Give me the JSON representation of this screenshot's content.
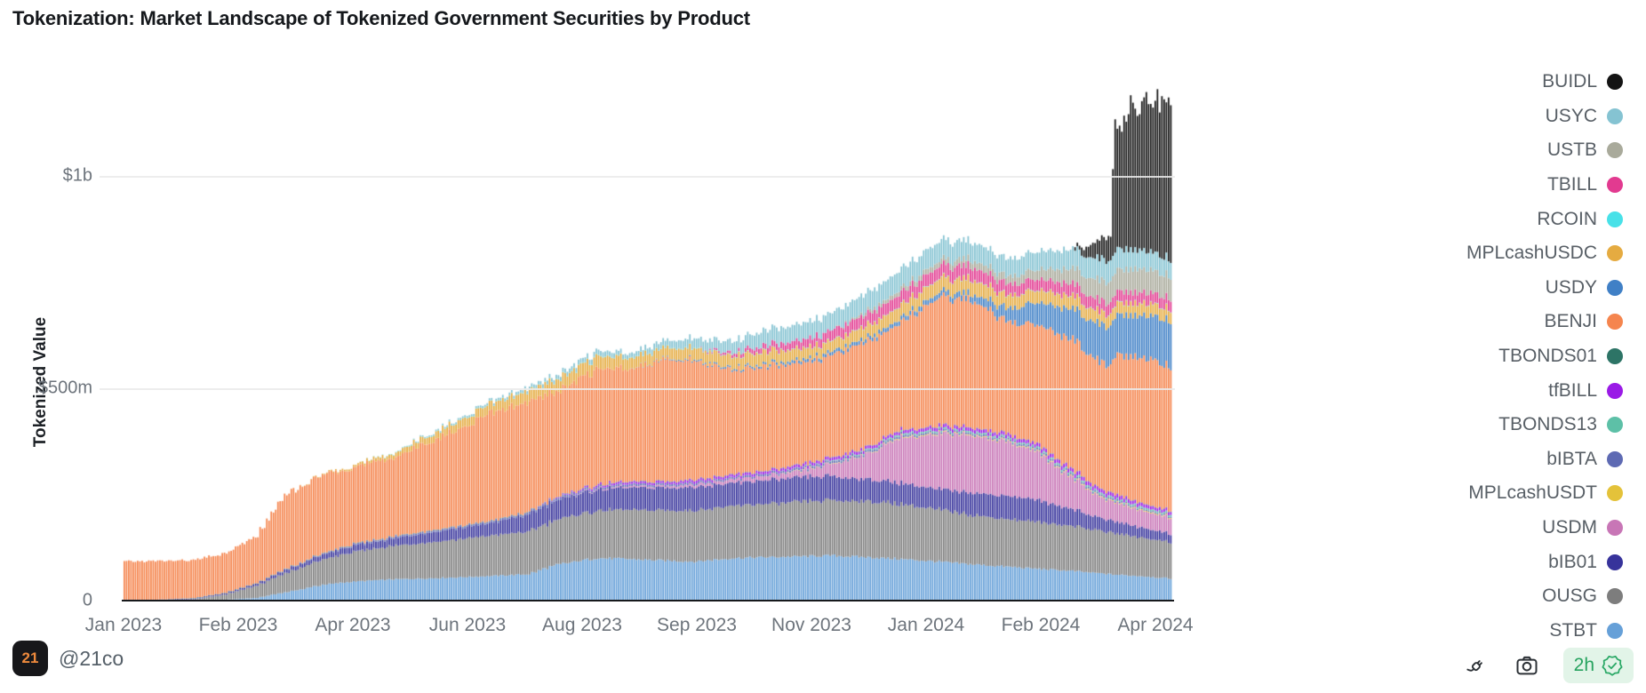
{
  "title": "Tokenization: Market Landscape of Tokenized Government Securities by Product",
  "y_axis": {
    "title": "Tokenized Value",
    "ticks": [
      {
        "label": "$1b",
        "value": 1000
      },
      {
        "label": "$500m",
        "value": 500
      },
      {
        "label": "0",
        "value": 0
      }
    ]
  },
  "x_axis": {
    "ticks": [
      "Jan 2023",
      "Feb 2023",
      "Apr 2023",
      "Jun 2023",
      "Aug 2023",
      "Sep 2023",
      "Nov 2023",
      "Jan 2024",
      "Feb 2024",
      "Apr 2024"
    ]
  },
  "legend": {
    "position": "right",
    "items_top_to_bottom": [
      "BUIDL",
      "USYC",
      "USTB",
      "TBILL",
      "RCOIN",
      "MPLcashUSDC",
      "USDY",
      "BENJI",
      "TBONDS01",
      "tfBILL",
      "TBONDS13",
      "bIBTA",
      "MPLcashUSDT",
      "USDM",
      "bIB01",
      "OUSG",
      "STBT"
    ]
  },
  "footer": {
    "logo_text": "21",
    "handle": "@21co",
    "icons": [
      "plug-icon",
      "camera-icon"
    ],
    "freshness": {
      "label": "2h",
      "icon": "verified-check-icon",
      "color": "#27a35f",
      "bg": "#e2f4e8"
    }
  },
  "chart_data": {
    "type": "bar",
    "stacked": true,
    "title": "Tokenization: Market Landscape of Tokenized Government Securities by Product",
    "xlabel": "",
    "ylabel": "Tokenized Value",
    "value_unit": "USD millions",
    "ylim": [
      0,
      1250
    ],
    "grid": "horizontal",
    "legend_position": "right-outside",
    "note": "Daily stacked bars; series listed bottom-to-top of stack; values are control points (USD millions) at the dates below, bars interpolate between them.",
    "dates": [
      "2023-01-01",
      "2023-01-15",
      "2023-02-01",
      "2023-02-15",
      "2023-03-01",
      "2023-03-15",
      "2023-04-01",
      "2023-04-15",
      "2023-05-01",
      "2023-05-15",
      "2023-06-01",
      "2023-06-15",
      "2023-07-01",
      "2023-07-15",
      "2023-08-01",
      "2023-08-15",
      "2023-09-01",
      "2023-09-15",
      "2023-10-01",
      "2023-10-15",
      "2023-11-01",
      "2023-11-15",
      "2023-12-01",
      "2023-12-15",
      "2024-01-01",
      "2024-01-15",
      "2024-02-01",
      "2024-02-15",
      "2024-03-01",
      "2024-03-15",
      "2024-03-19",
      "2024-03-21",
      "2024-04-01",
      "2024-04-15"
    ],
    "series": [
      {
        "name": "STBT",
        "color": "#66a0d8",
        "values": [
          0,
          0,
          0,
          2,
          6,
          20,
          38,
          45,
          50,
          52,
          55,
          58,
          62,
          85,
          100,
          98,
          94,
          92,
          100,
          102,
          104,
          106,
          102,
          98,
          92,
          86,
          80,
          75,
          70,
          64,
          62,
          61,
          58,
          52
        ]
      },
      {
        "name": "OUSG",
        "color": "#7d7d7d",
        "values": [
          1,
          1,
          3,
          12,
          28,
          45,
          60,
          70,
          78,
          84,
          90,
          95,
          100,
          106,
          112,
          115,
          118,
          121,
          123,
          125,
          128,
          130,
          132,
          130,
          122,
          117,
          112,
          110,
          106,
          100,
          98,
          97,
          92,
          86
        ]
      },
      {
        "name": "bIB01",
        "color": "#37339b",
        "values": [
          1,
          1,
          2,
          3,
          5,
          8,
          12,
          15,
          18,
          22,
          26,
          30,
          40,
          46,
          50,
          52,
          54,
          56,
          54,
          56,
          58,
          56,
          52,
          50,
          48,
          52,
          55,
          52,
          40,
          30,
          28,
          28,
          24,
          20
        ]
      },
      {
        "name": "USDM",
        "color": "#c876b6",
        "values": [
          0,
          0,
          0,
          0,
          0,
          0,
          0,
          0,
          0,
          0,
          0,
          0,
          0,
          0,
          2,
          3,
          4,
          6,
          8,
          10,
          14,
          28,
          60,
          105,
          130,
          135,
          128,
          112,
          75,
          48,
          46,
          45,
          40,
          38
        ]
      },
      {
        "name": "MPLcashUSDT",
        "color": "#e4c23a",
        "values": [
          0,
          0,
          0,
          0,
          0,
          0,
          0,
          0,
          0,
          0,
          0,
          0,
          0,
          0,
          0,
          0,
          0,
          0,
          0,
          0,
          1,
          1,
          1,
          2,
          2,
          2,
          2,
          2,
          2,
          2,
          2,
          2,
          2,
          2
        ]
      },
      {
        "name": "bIBTA",
        "color": "#5e6ab3",
        "values": [
          0,
          0,
          0,
          0,
          0,
          1,
          2,
          3,
          3,
          4,
          4,
          4,
          5,
          5,
          5,
          5,
          5,
          5,
          5,
          5,
          5,
          5,
          5,
          5,
          4,
          4,
          4,
          4,
          4,
          4,
          4,
          4,
          3,
          3
        ]
      },
      {
        "name": "TBONDS13",
        "color": "#5dc0a7",
        "values": [
          0,
          0,
          0,
          0,
          0,
          0,
          0,
          0,
          0,
          0,
          0,
          0,
          0,
          0,
          0,
          0,
          0,
          0,
          0,
          0,
          1,
          2,
          3,
          4,
          4,
          4,
          4,
          4,
          4,
          4,
          4,
          4,
          4,
          4
        ]
      },
      {
        "name": "tfBILL",
        "color": "#9a1ae6",
        "values": [
          0,
          0,
          0,
          0,
          0,
          0,
          0,
          0,
          0,
          0,
          0,
          0,
          0,
          2,
          4,
          5,
          5,
          6,
          6,
          6,
          7,
          7,
          7,
          7,
          8,
          8,
          8,
          8,
          9,
          9,
          9,
          9,
          8,
          7
        ]
      },
      {
        "name": "TBONDS01",
        "color": "#2d7466",
        "values": [
          0,
          0,
          1,
          1,
          1,
          1,
          1,
          1,
          1,
          1,
          1,
          1,
          1,
          1,
          1,
          1,
          1,
          1,
          1,
          1,
          1,
          1,
          1,
          1,
          1,
          1,
          1,
          1,
          1,
          1,
          1,
          1,
          1,
          1
        ]
      },
      {
        "name": "BENJI",
        "color": "#f5854e",
        "values": [
          90,
          91,
          89,
          92,
          110,
          175,
          185,
          181,
          184,
          204,
          229,
          254,
          258,
          247,
          273,
          264,
          285,
          280,
          245,
          246,
          239,
          240,
          247,
          253,
          302,
          302,
          265,
          280,
          307,
          297,
          301,
          327,
          344,
          339
        ]
      },
      {
        "name": "USDY",
        "color": "#4080c6",
        "values": [
          0,
          0,
          0,
          0,
          0,
          0,
          0,
          0,
          0,
          0,
          0,
          0,
          0,
          0,
          0,
          0,
          2,
          3,
          4,
          5,
          7,
          8,
          9,
          10,
          12,
          14,
          30,
          52,
          72,
          88,
          91,
          92,
          100,
          108
        ]
      },
      {
        "name": "MPLcashUSDC",
        "color": "#e5ab41",
        "values": [
          0,
          0,
          0,
          0,
          0,
          0,
          2,
          5,
          10,
          15,
          20,
          22,
          26,
          28,
          30,
          26,
          25,
          27,
          28,
          30,
          26,
          25,
          28,
          30,
          32,
          34,
          30,
          29,
          30,
          28,
          28,
          28,
          28,
          27
        ]
      },
      {
        "name": "RCOIN",
        "color": "#48e1e8",
        "values": [
          0,
          0,
          0,
          0,
          0,
          0,
          0,
          0,
          1,
          1,
          1,
          1,
          1,
          1,
          1,
          1,
          1,
          1,
          1,
          1,
          1,
          1,
          1,
          1,
          1,
          1,
          1,
          1,
          1,
          1,
          1,
          1,
          1,
          1
        ]
      },
      {
        "name": "TBILL",
        "color": "#e23a90",
        "values": [
          0,
          0,
          0,
          0,
          0,
          0,
          0,
          0,
          0,
          0,
          0,
          0,
          0,
          0,
          0,
          0,
          0,
          0,
          7,
          13,
          19,
          24,
          26,
          28,
          28,
          30,
          26,
          25,
          28,
          26,
          26,
          26,
          25,
          25
        ]
      },
      {
        "name": "USTB",
        "color": "#a9aa9b",
        "values": [
          0,
          0,
          0,
          0,
          0,
          0,
          0,
          0,
          0,
          0,
          0,
          0,
          0,
          0,
          0,
          0,
          0,
          0,
          0,
          0,
          0,
          0,
          7,
          10,
          13,
          16,
          18,
          22,
          35,
          48,
          50,
          51,
          55,
          52
        ]
      },
      {
        "name": "USYC",
        "color": "#85c3d2",
        "values": [
          0,
          0,
          0,
          0,
          0,
          0,
          0,
          0,
          0,
          2,
          4,
          5,
          7,
          9,
          12,
          10,
          16,
          22,
          28,
          35,
          39,
          41,
          44,
          46,
          46,
          44,
          41,
          43,
          46,
          50,
          49,
          49,
          45,
          40
        ]
      },
      {
        "name": "BUIDL",
        "color": "#141414",
        "values": [
          0,
          0,
          0,
          0,
          0,
          0,
          0,
          0,
          0,
          0,
          0,
          0,
          0,
          0,
          0,
          0,
          0,
          0,
          0,
          0,
          0,
          0,
          0,
          0,
          0,
          0,
          0,
          0,
          0,
          45,
          60,
          295,
          330,
          395
        ]
      }
    ]
  }
}
